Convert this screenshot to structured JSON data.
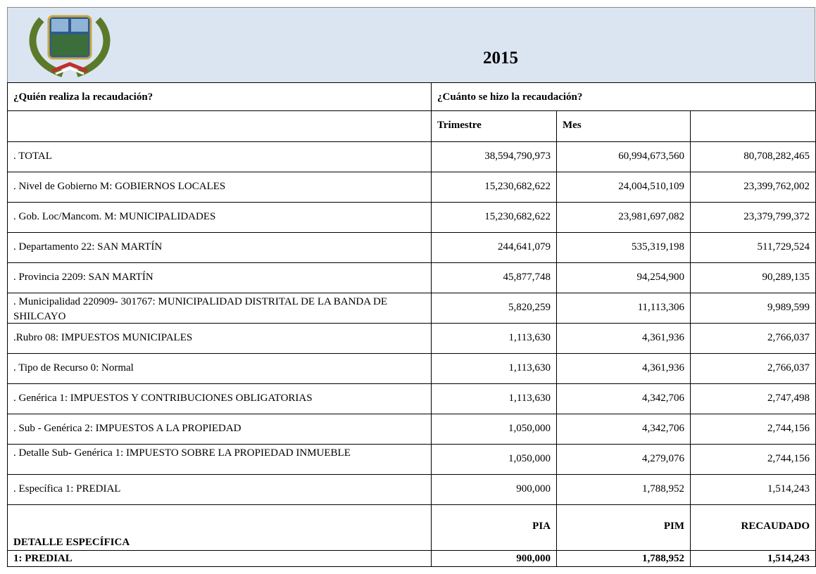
{
  "header": {
    "title": "2015"
  },
  "table": {
    "question_who": "¿Quién realiza la recaudación?",
    "question_how": "¿Cuánto se hizo la recaudación?",
    "subheaders": [
      "Trimestre",
      "Mes"
    ],
    "rows": [
      [
        ". TOTAL",
        "38,594,790,973",
        "60,994,673,560",
        "80,708,282,465"
      ],
      [
        ". Nivel de Gobierno M: GOBIERNOS LOCALES",
        "15,230,682,622",
        "24,004,510,109",
        "23,399,762,002"
      ],
      [
        ". Gob. Loc/Mancom. M: MUNICIPALIDADES",
        "15,230,682,622",
        "23,981,697,082",
        "23,379,799,372"
      ],
      [
        ". Departamento 22: SAN MARTÍN",
        "244,641,079",
        "535,319,198",
        "511,729,524"
      ],
      [
        ". Provincia 2209: SAN MARTÍN",
        "45,877,748",
        "94,254,900",
        "90,289,135"
      ],
      [
        ". Municipalidad 220909- 301767: MUNICIPALIDAD DISTRITAL DE LA BANDA DE SHILCAYO",
        "5,820,259",
        "11,113,306",
        "9,989,599"
      ],
      [
        ".Rubro 08: IMPUESTOS MUNICIPALES",
        "1,113,630",
        "4,361,936",
        "2,766,037"
      ],
      [
        ". Tipo de Recurso 0: Normal",
        "1,113,630",
        "4,361,936",
        "2,766,037"
      ],
      [
        ". Genérica 1: IMPUESTOS Y CONTRIBUCIONES OBLIGATORIAS",
        "1,113,630",
        "4,342,706",
        "2,747,498"
      ],
      [
        ". Sub - Genérica 2: IMPUESTOS A LA PROPIEDAD",
        "1,050,000",
        "4,342,706",
        "2,744,156"
      ],
      [
        ". Detalle Sub- Genérica 1: IMPUESTO SOBRE LA PROPIEDAD INMUEBLE",
        "1,050,000",
        "4,279,076",
        "2,744,156"
      ],
      [
        ". Específica 1: PREDIAL",
        "900,000",
        "1,788,952",
        "1,514,243"
      ]
    ],
    "detail_header": [
      "DETALLE ESPECÍFICA",
      "PIA",
      "PIM",
      "RECAUDADO"
    ],
    "detail_row": [
      "1: PREDIAL",
      "900,000",
      "1,788,952",
      "1,514,243"
    ]
  }
}
